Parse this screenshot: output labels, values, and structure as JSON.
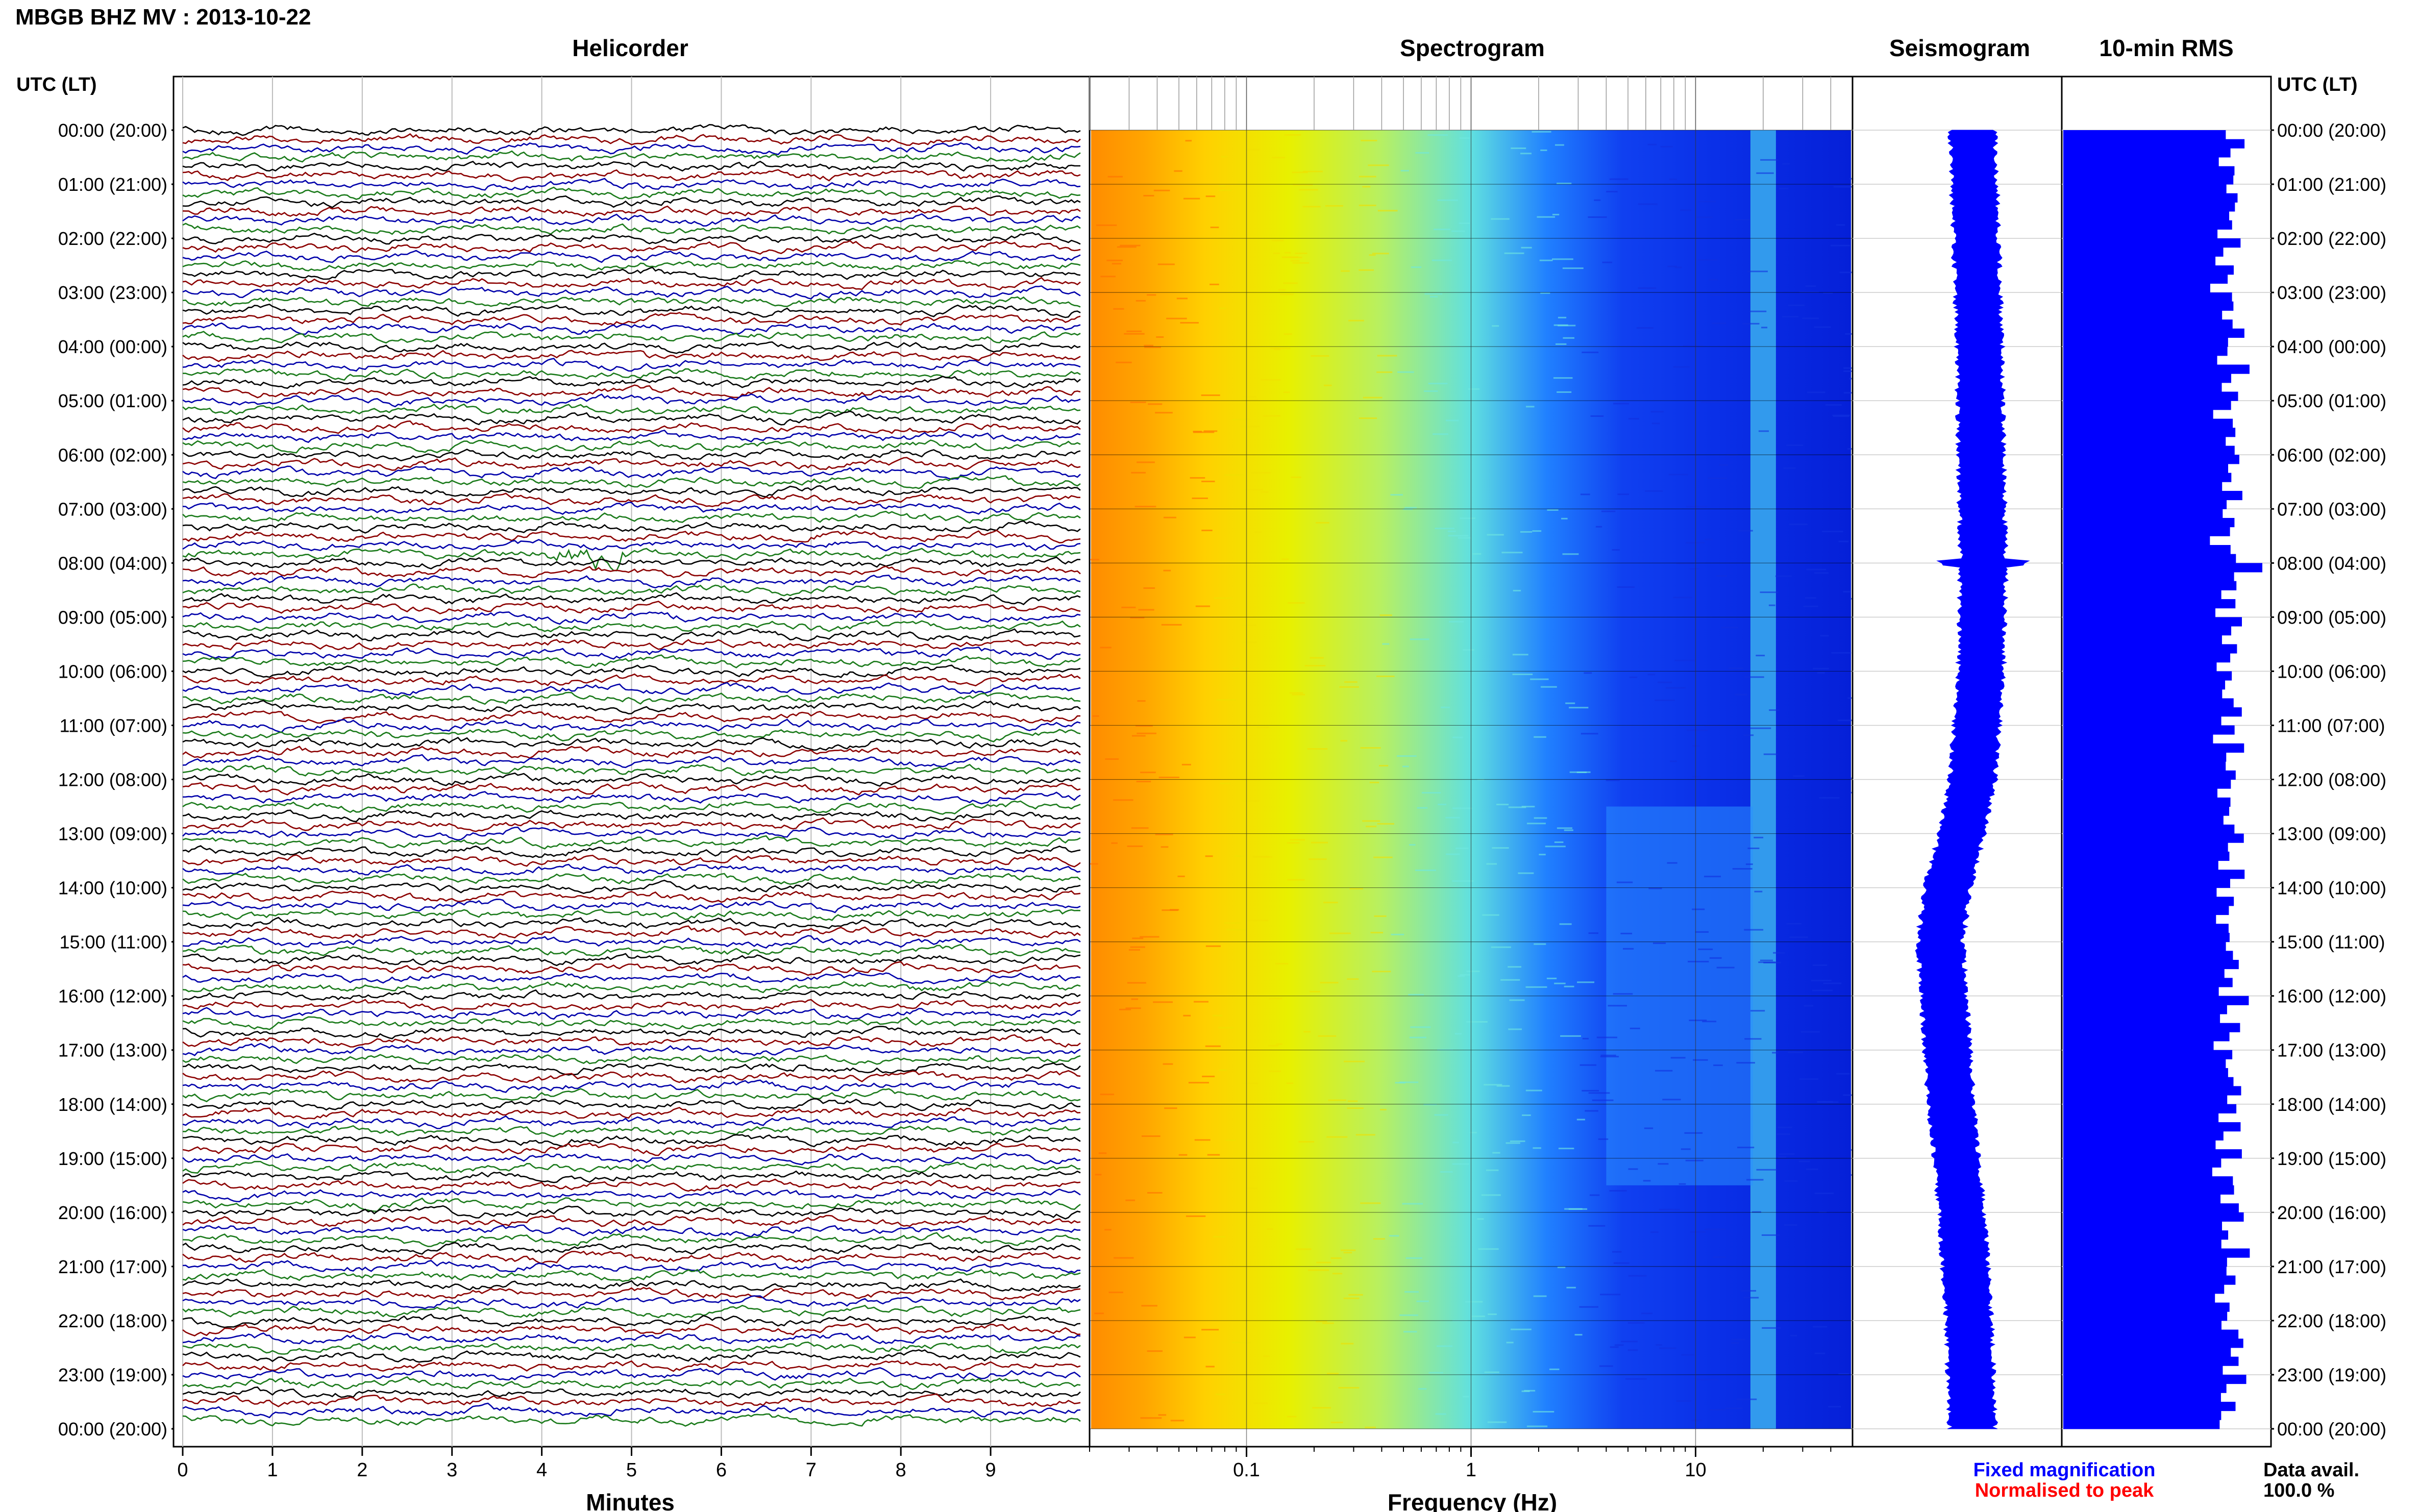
{
  "header": {
    "station_title": "MBGB BHZ MV : 2013-10-22",
    "utc_lt_label": "UTC (LT)"
  },
  "panels": {
    "helicorder": "Helicorder",
    "spectrogram": "Spectrogram",
    "seismogram": "Seismogram",
    "rms": "10-min RMS"
  },
  "footer": {
    "minutes_label": "Minutes",
    "frequency_label": "Frequency (Hz)",
    "fixed_magnification": "Fixed magnification",
    "normalised_to_peak": "Normalised to peak",
    "data_avail_label": "Data avail.",
    "data_avail_value": "100.0 %"
  },
  "colors": {
    "trace_cycle": [
      "#000000",
      "#8b0000",
      "#0000aa",
      "#1a7a1a"
    ],
    "fixed_magnification": "#0000ff",
    "normalised_to_peak": "#ff0000",
    "seismogram": "#0000ff",
    "rms_bars": "#0000ff"
  },
  "chart_data": {
    "type": "heatmap",
    "time_ticks": [
      "00:00 (20:00)",
      "01:00 (21:00)",
      "02:00 (22:00)",
      "03:00 (23:00)",
      "04:00 (00:00)",
      "05:00 (01:00)",
      "06:00 (02:00)",
      "07:00 (03:00)",
      "08:00 (04:00)",
      "09:00 (05:00)",
      "10:00 (06:00)",
      "11:00 (07:00)",
      "12:00 (08:00)",
      "13:00 (09:00)",
      "14:00 (10:00)",
      "15:00 (11:00)",
      "16:00 (12:00)",
      "17:00 (13:00)",
      "18:00 (14:00)",
      "19:00 (15:00)",
      "20:00 (16:00)",
      "21:00 (17:00)",
      "22:00 (18:00)",
      "23:00 (19:00)",
      "00:00 (20:00)"
    ],
    "helicorder": {
      "xlabel": "Minutes",
      "xlim": [
        0,
        10
      ],
      "x_ticks": [
        0,
        1,
        2,
        3,
        4,
        5,
        6,
        7,
        8,
        9
      ],
      "traces_per_hour": 6,
      "trace_count": 144,
      "events": [
        {
          "time_hours": 7.9,
          "minute": 4.5
        }
      ]
    },
    "spectrogram": {
      "xlabel": "Frequency (Hz)",
      "x_scale": "log",
      "xlim": [
        0.02,
        50
      ],
      "x_ticks": [
        0.1,
        1,
        10
      ],
      "x_tick_labels": [
        "0.1",
        "1",
        "10"
      ],
      "bands": [
        {
          "freq_hz": [
            0.02,
            0.06
          ],
          "level": "high"
        },
        {
          "freq_hz": [
            0.06,
            0.4
          ],
          "level": "moderate"
        },
        {
          "freq_hz": [
            0.4,
            3
          ],
          "level": "low"
        },
        {
          "freq_hz": [
            3,
            50
          ],
          "level": "very low"
        }
      ],
      "persistent_line_hz": 20,
      "daytime_noise_hours": [
        12.5,
        19.5
      ],
      "daytime_noise_freq_hz": [
        4,
        18
      ]
    },
    "seismogram": {
      "envelope_hours": [
        0,
        2,
        4,
        6,
        8,
        10,
        12,
        13,
        14,
        15,
        16,
        18,
        20,
        22,
        24
      ],
      "envelope_offset": [
        0.0,
        0.05,
        0.1,
        0.12,
        0.15,
        0.12,
        0.0,
        -0.15,
        -0.35,
        -0.45,
        -0.4,
        -0.3,
        -0.15,
        -0.05,
        0.0
      ]
    },
    "rms": {
      "bar_count": 144,
      "relative_levels": [
        0.8,
        0.95,
        0.85,
        0.75,
        0.9,
        0.88,
        0.82,
        0.92,
        0.96,
        0.85,
        0.9,
        0.78,
        1.0,
        0.85
      ],
      "spike_hours": [
        8.0
      ]
    }
  }
}
